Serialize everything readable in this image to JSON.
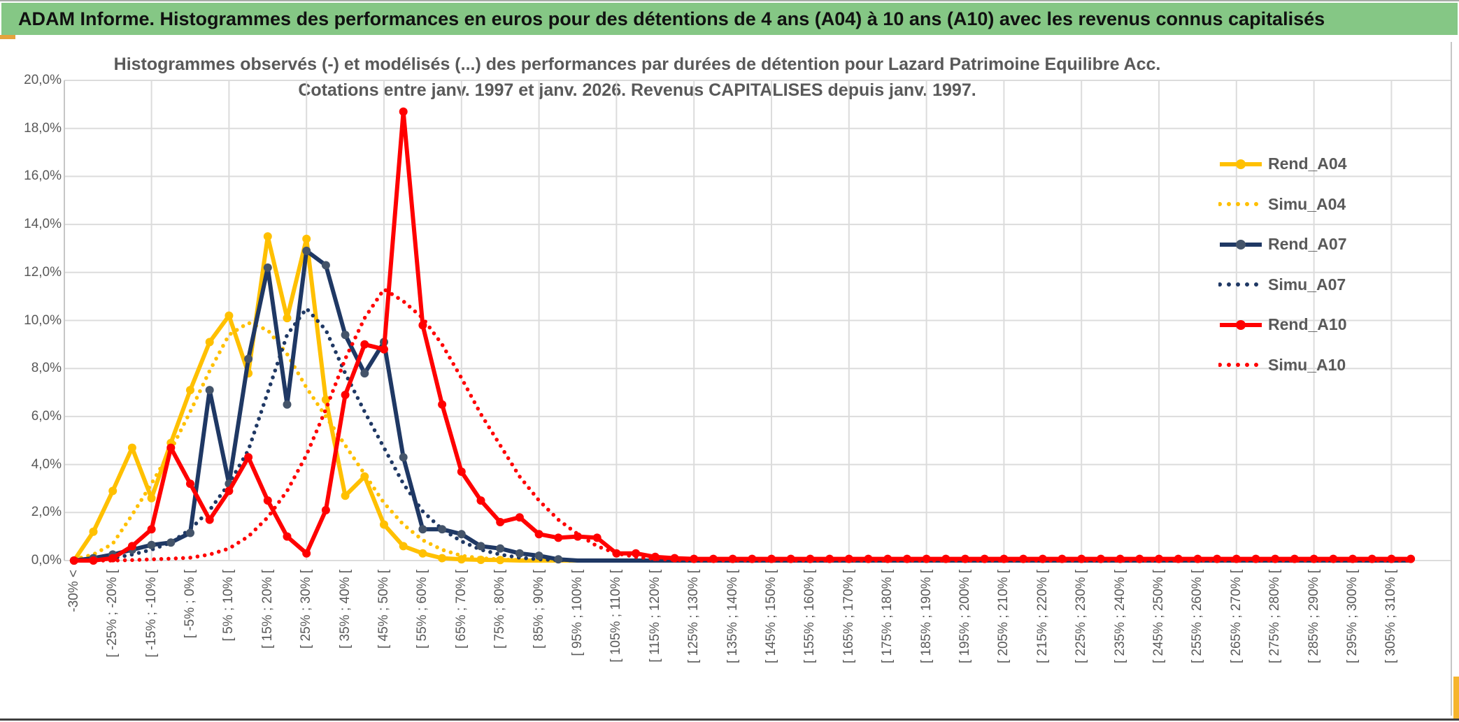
{
  "window": {
    "header_title": "ADAM Informe. Histogrammes des performances en euros pour des détentions de 4 ans (A04) à 10 ans (A10) avec les revenus connus capitalisés"
  },
  "colors": {
    "header_green": "#85c785",
    "accent_gold": "#e5a33c",
    "right_bar_gold": "#f6b52e",
    "gridline": "#dcdcdc",
    "plot_border": "#c6c6c6",
    "axis_text": "#595959",
    "series_gold": "#FFC000",
    "series_navy": "#1F3864",
    "series_navy_marker": "#44546A",
    "series_red": "#FF0000"
  },
  "chart_data": {
    "type": "line",
    "title_line1": "Histogrammes observés (-) et modélisés (...) des performances par durées de détention pour Lazard Patrimoine Equilibre Acc.",
    "title_line2": "Cotations entre janv. 1997 et janv. 2026. Revenus CAPITALISES depuis janv. 1997.",
    "ylim": [
      0,
      20
    ],
    "grid": true,
    "legend_position": "right",
    "y_tick_labels": [
      "20,0%",
      "18,0%",
      "16,0%",
      "14,0%",
      "12,0%",
      "10,0%",
      "8,0%",
      "6,0%",
      "4,0%",
      "2,0%",
      "0,0%"
    ],
    "num_bins": 70,
    "bin_width_pct": 5,
    "x_tick_labels_every_2nd_bin": [
      "-30% <",
      "[ -25% ; -20% [",
      "[ -15% ; -10% [",
      "[ -5% ; 0% [",
      "[ 5% ; 10% [",
      "[ 15% ; 20% [",
      "[ 25% ; 30% [",
      "[ 35% ; 40% [",
      "[ 45% ; 50% [",
      "[ 55% ; 60% [",
      "[ 65% ; 70% [",
      "[ 75% ; 80% [",
      "[ 85% ; 90% [",
      "[ 95% ; 100% [",
      "[ 105% ; 110% [",
      "[ 115% ; 120% [",
      "[ 125% ; 130% [",
      "[ 135% ; 140% [",
      "[ 145% ; 150% [",
      "[ 155% ; 160% [",
      "[ 165% ; 170% [",
      "[ 175% ; 180% [",
      "[ 185% ; 190% [",
      "[ 195% ; 200% [",
      "[ 205% ; 210% [",
      "[ 215% ; 220% [",
      "[ 225% ; 230% [",
      "[ 235% ; 240% [",
      "[ 245% ; 250% [",
      "[ 255% ; 260% [",
      "[ 265% ; 270% [",
      "[ 275% ; 280% [",
      "[ 285% ; 290% [",
      "[ 295% ; 300% [",
      "[ 305% ; 310% ["
    ],
    "series": [
      {
        "name": "Rend_A04",
        "style": "solid",
        "color": "#FFC000",
        "marker_color": "#FFC000",
        "values": [
          0,
          1.2,
          2.9,
          4.7,
          2.6,
          4.9,
          7.1,
          9.1,
          10.2,
          7.8,
          13.5,
          10.1,
          13.4,
          6.7,
          2.7,
          3.5,
          1.5,
          0.6,
          0.3,
          0.1,
          0.05,
          0.03,
          0.02,
          0,
          0,
          0,
          0,
          0,
          0,
          0,
          0,
          0,
          0,
          0,
          0,
          0,
          0,
          0,
          0,
          0,
          0,
          0,
          0,
          0,
          0,
          0,
          0,
          0,
          0,
          0,
          0,
          0,
          0,
          0,
          0,
          0,
          0,
          0,
          0,
          0,
          0,
          0,
          0,
          0,
          0,
          0,
          0,
          0,
          0,
          0
        ]
      },
      {
        "name": "Simu_A04",
        "style": "dotted",
        "color": "#FFC000",
        "marker_color": null,
        "values": [
          0.05,
          0.25,
          0.7,
          1.9,
          3.2,
          4.6,
          6.2,
          7.9,
          9.4,
          9.9,
          9.6,
          8.6,
          7.2,
          6.0,
          4.8,
          3.6,
          2.4,
          1.5,
          0.85,
          0.45,
          0.2,
          0.1,
          0.05,
          0.02,
          0,
          0,
          0,
          0,
          0,
          0,
          0,
          0,
          0,
          0,
          0,
          0,
          0,
          0,
          0,
          0,
          0,
          0,
          0,
          0,
          0,
          0,
          0,
          0,
          0,
          0,
          0,
          0,
          0,
          0,
          0,
          0,
          0,
          0,
          0,
          0,
          0,
          0,
          0,
          0,
          0,
          0,
          0,
          0,
          0,
          0
        ]
      },
      {
        "name": "Rend_A07",
        "style": "solid",
        "color": "#1F3864",
        "marker_color": "#44546A",
        "values": [
          0,
          0.1,
          0.25,
          0.45,
          0.65,
          0.75,
          1.15,
          7.1,
          3.2,
          8.4,
          12.2,
          6.5,
          12.9,
          12.3,
          9.4,
          7.8,
          9.1,
          4.3,
          1.3,
          1.3,
          1.1,
          0.6,
          0.5,
          0.3,
          0.2,
          0.05,
          0,
          0,
          0,
          0,
          0,
          0,
          0,
          0,
          0,
          0,
          0,
          0,
          0,
          0,
          0,
          0,
          0,
          0,
          0,
          0,
          0,
          0,
          0,
          0,
          0,
          0,
          0,
          0,
          0,
          0,
          0,
          0,
          0,
          0,
          0,
          0,
          0,
          0,
          0,
          0,
          0,
          0,
          0,
          0
        ]
      },
      {
        "name": "Simu_A07",
        "style": "dotted",
        "color": "#1F3864",
        "marker_color": null,
        "values": [
          0,
          0.03,
          0.1,
          0.25,
          0.45,
          0.75,
          1.3,
          2.1,
          3.2,
          4.6,
          7.0,
          9.4,
          10.5,
          9.6,
          7.8,
          6.2,
          4.7,
          3.2,
          2.05,
          1.3,
          0.8,
          0.45,
          0.25,
          0.12,
          0.05,
          0.02,
          0,
          0,
          0,
          0,
          0,
          0,
          0,
          0,
          0,
          0,
          0,
          0,
          0,
          0,
          0,
          0,
          0,
          0,
          0,
          0,
          0,
          0,
          0,
          0,
          0,
          0,
          0,
          0,
          0,
          0,
          0,
          0,
          0,
          0,
          0,
          0,
          0,
          0,
          0,
          0,
          0,
          0,
          0,
          0
        ]
      },
      {
        "name": "Rend_A10",
        "style": "solid",
        "color": "#FF0000",
        "marker_color": "#FF0000",
        "values": [
          0,
          0,
          0.1,
          0.6,
          1.3,
          4.7,
          3.2,
          1.7,
          2.9,
          4.3,
          2.5,
          1.0,
          0.3,
          2.1,
          6.9,
          9.0,
          8.8,
          18.7,
          9.8,
          6.5,
          3.7,
          2.5,
          1.6,
          1.8,
          1.1,
          0.95,
          1.0,
          0.95,
          0.3,
          0.3,
          0.15,
          0.1,
          0.07,
          0.07,
          0.07,
          0.07,
          0.07,
          0.07,
          0.07,
          0.07,
          0.07,
          0.07,
          0.07,
          0.07,
          0.07,
          0.07,
          0.07,
          0.07,
          0.07,
          0.07,
          0.07,
          0.07,
          0.07,
          0.07,
          0.07,
          0.07,
          0.07,
          0.07,
          0.07,
          0.07,
          0.07,
          0.07,
          0.07,
          0.07,
          0.07,
          0.07,
          0.07,
          0.07,
          0.07,
          0.07
        ]
      },
      {
        "name": "Simu_A10",
        "style": "dotted",
        "color": "#FF0000",
        "marker_color": null,
        "values": [
          0,
          0,
          0,
          0.02,
          0.05,
          0.08,
          0.12,
          0.25,
          0.5,
          1.0,
          1.8,
          2.9,
          4.4,
          6.3,
          8.4,
          10.1,
          11.3,
          10.8,
          10.1,
          9.0,
          7.6,
          6.1,
          4.8,
          3.5,
          2.5,
          1.7,
          1.1,
          0.6,
          0.3,
          0.15,
          0.07,
          0.03,
          0,
          0,
          0,
          0,
          0,
          0,
          0,
          0,
          0,
          0,
          0,
          0,
          0,
          0,
          0,
          0,
          0,
          0,
          0,
          0,
          0,
          0,
          0,
          0,
          0,
          0,
          0,
          0,
          0,
          0,
          0,
          0,
          0,
          0,
          0,
          0,
          0,
          0
        ]
      }
    ]
  }
}
